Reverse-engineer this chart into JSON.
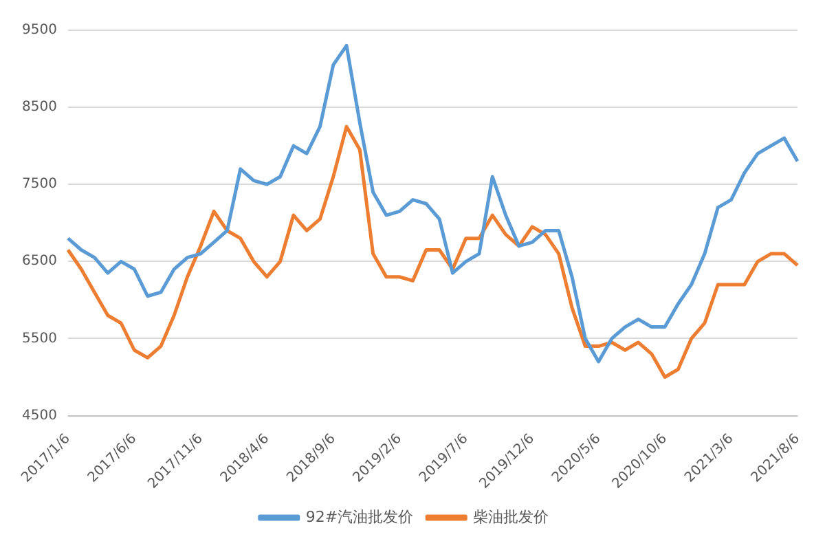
{
  "chart_data": {
    "type": "line",
    "categories": [
      "2017/1/6",
      null,
      null,
      null,
      null,
      "2017/6/6",
      null,
      null,
      null,
      null,
      "2017/11/6",
      null,
      null,
      null,
      null,
      "2018/4/6",
      null,
      null,
      null,
      null,
      "2018/9/6",
      null,
      null,
      null,
      null,
      "2019/2/6",
      null,
      null,
      null,
      null,
      "2019/7/6",
      null,
      null,
      null,
      null,
      "2019/12/6",
      null,
      null,
      null,
      null,
      "2020/5/6",
      null,
      null,
      null,
      null,
      "2020/10/6",
      null,
      null,
      null,
      null,
      "2021/3/6",
      null,
      null,
      null,
      null,
      "2021/8/6"
    ],
    "series": [
      {
        "name": "92#汽油批发价",
        "color": "#5b9bd5",
        "values": [
          6800,
          6650,
          6550,
          6350,
          6500,
          6400,
          6050,
          6100,
          6400,
          6550,
          6600,
          6750,
          6900,
          7700,
          7550,
          7500,
          7600,
          8000,
          7900,
          8250,
          9050,
          9300,
          8300,
          7400,
          7100,
          7150,
          7300,
          7250,
          7050,
          6350,
          6500,
          6600,
          7600,
          7100,
          6700,
          6750,
          6900,
          6900,
          6300,
          5500,
          5200,
          5500,
          5650,
          5750,
          5650,
          5650,
          5950,
          6200,
          6600,
          7200,
          7300,
          7650,
          7900,
          8000,
          8100,
          7800
        ]
      },
      {
        "name": "柴油批发价",
        "color": "#ed7d31",
        "values": [
          6650,
          6400,
          6100,
          5800,
          5700,
          5350,
          5250,
          5400,
          5800,
          6300,
          6700,
          7150,
          6900,
          6800,
          6500,
          6300,
          6500,
          7100,
          6900,
          7050,
          7600,
          8250,
          7950,
          6600,
          6300,
          6300,
          6250,
          6650,
          6650,
          6400,
          6800,
          6800,
          7100,
          6850,
          6700,
          6950,
          6850,
          6600,
          5900,
          5400,
          5400,
          5450,
          5350,
          5450,
          5300,
          5000,
          5100,
          5500,
          5700,
          6200,
          6200,
          6200,
          6500,
          6600,
          6600,
          6450
        ]
      }
    ],
    "ylim": [
      4500,
      9500
    ],
    "yticks": [
      4500,
      5500,
      6500,
      7500,
      8500,
      9500
    ],
    "grid": "y",
    "legend": "bottom",
    "line_style": "solid",
    "marker": "none"
  }
}
